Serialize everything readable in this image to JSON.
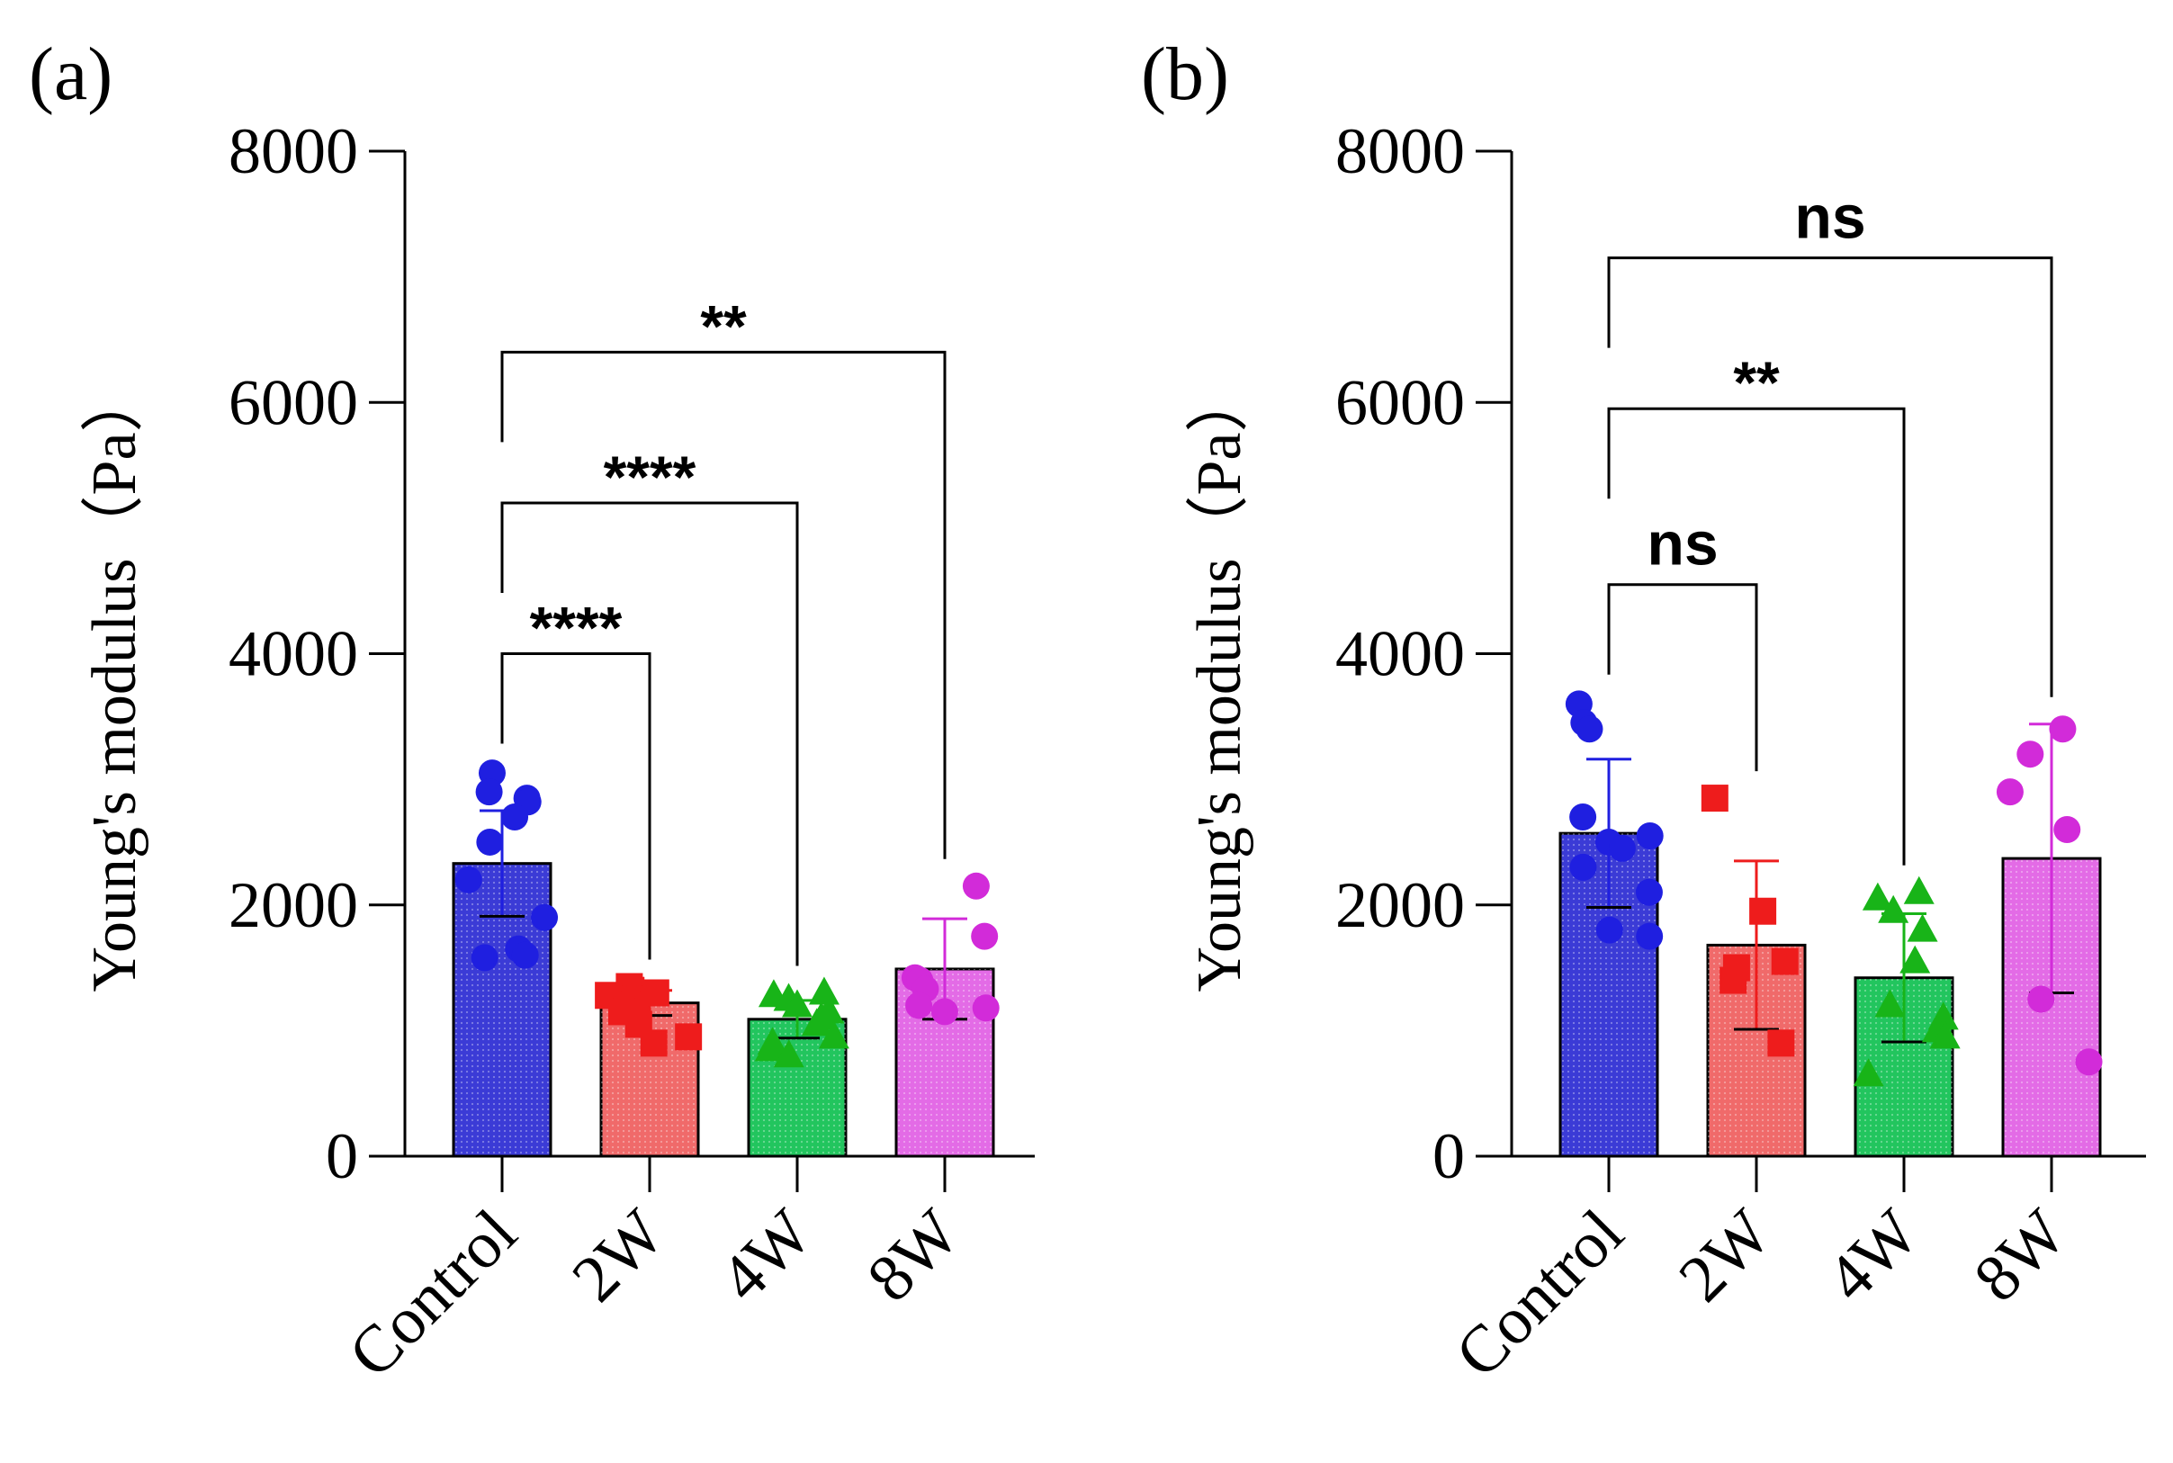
{
  "chart_data": [
    {
      "panel_label": "(a)",
      "type": "bar",
      "ylabel": "Young's modulus（Pa）",
      "ylim": [
        0,
        8000
      ],
      "yticks": [
        "0",
        "2000",
        "4000",
        "6000",
        "8000"
      ],
      "categories": [
        "Control",
        "2W",
        "4W",
        "8W"
      ],
      "colors": [
        "#3b3bd6",
        "#f06a6a",
        "#22c55e",
        "#e36be6"
      ],
      "marker_colors": [
        "#1f1fe0",
        "#ee1c1c",
        "#18b418",
        "#d22bd9"
      ],
      "markers": [
        "circle",
        "square",
        "triangle",
        "circle"
      ],
      "means": [
        2330,
        1220,
        1090,
        1490
      ],
      "sd": [
        420,
        100,
        150,
        400
      ],
      "points": [
        [
          3050,
          2900,
          2850,
          2820,
          2700,
          2500,
          2200,
          1900,
          1650,
          1600,
          1580
        ],
        [
          1350,
          1320,
          1300,
          1280,
          1250,
          1200,
          1150,
          1050,
          950,
          900
        ],
        [
          1300,
          1280,
          1250,
          1200,
          1150,
          1100,
          1050,
          950,
          900,
          850,
          800
        ],
        [
          2150,
          1750,
          1420,
          1400,
          1330,
          1200,
          1180,
          1150
        ]
      ],
      "comparisons": [
        {
          "from": 0,
          "to": 1,
          "label": "****",
          "y": 4000
        },
        {
          "from": 0,
          "to": 2,
          "label": "****",
          "y": 5200
        },
        {
          "from": 0,
          "to": 3,
          "label": "**",
          "y": 6400
        }
      ]
    },
    {
      "panel_label": "(b)",
      "type": "bar",
      "ylabel": "Young's modulus（Pa）",
      "ylim": [
        0,
        8000
      ],
      "yticks": [
        "0",
        "2000",
        "4000",
        "6000",
        "8000"
      ],
      "categories": [
        "Control",
        "2W",
        "4W",
        "8W"
      ],
      "colors": [
        "#3b3bd6",
        "#f06a6a",
        "#22c55e",
        "#e36be6"
      ],
      "marker_colors": [
        "#1f1fe0",
        "#ee1c1c",
        "#18b418",
        "#d22bd9"
      ],
      "markers": [
        "circle",
        "square",
        "triangle",
        "circle"
      ],
      "means": [
        2570,
        1680,
        1420,
        2370
      ],
      "sd": [
        590,
        670,
        510,
        1070
      ],
      "points": [
        [
          3600,
          3450,
          3400,
          2700,
          2550,
          2500,
          2450,
          2300,
          2100,
          1800,
          1750
        ],
        [
          2850,
          1950,
          1550,
          1500,
          1400,
          900
        ],
        [
          2100,
          2050,
          1950,
          1800,
          1550,
          1200,
          1100,
          1000,
          950,
          650
        ],
        [
          3400,
          3200,
          2900,
          2600,
          1250,
          750
        ]
      ],
      "comparisons": [
        {
          "from": 0,
          "to": 1,
          "label": "ns",
          "y": 4550
        },
        {
          "from": 0,
          "to": 2,
          "label": "**",
          "y": 5950
        },
        {
          "from": 0,
          "to": 3,
          "label": "ns",
          "y": 7150
        }
      ]
    }
  ]
}
